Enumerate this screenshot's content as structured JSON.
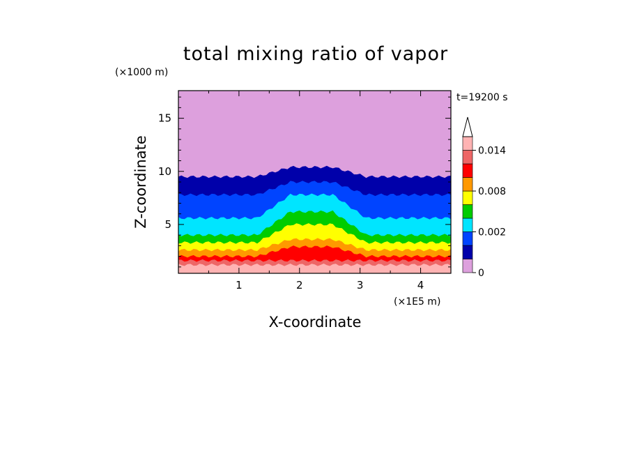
{
  "chart_data": {
    "type": "heatmap",
    "title": "total mixing ratio of vapor",
    "xlabel": "X-coordinate",
    "ylabel": "Z-coordinate",
    "x_unit": "(×1E5 m)",
    "y_unit": "(×1000 m)",
    "time_label": "t=19200 s",
    "xlim": [
      0,
      4.5
    ],
    "ylim": [
      0.4,
      17.6
    ],
    "x_ticks": [
      "1",
      "2",
      "3",
      "4"
    ],
    "x_tick_values": [
      1,
      2,
      3,
      4
    ],
    "y_ticks": [
      "5",
      "10",
      "15"
    ],
    "y_tick_values": [
      5,
      10,
      15
    ],
    "colorbar": {
      "levels": [
        0,
        0.001,
        0.002,
        0.004,
        0.006,
        0.008,
        0.01,
        0.012,
        0.014,
        0.016
      ],
      "tick_labels": [
        "0",
        "0.002",
        "0.008",
        "0.014"
      ],
      "tick_values": [
        0,
        0.002,
        0.008,
        0.014
      ],
      "colors": [
        "#dda0dd",
        "#0000aa",
        "#0044ff",
        "#00e5ff",
        "#00cc00",
        "#ffff00",
        "#ff9900",
        "#ff0000",
        "#ee6666",
        "#ffb3b3"
      ],
      "extend": "max"
    },
    "bands": [
      {
        "level": 0.001,
        "z_far": 9.5,
        "z_near": 9.5,
        "z_top": 10.4
      },
      {
        "level": 0.002,
        "z_far": 7.8,
        "z_near": 7.8,
        "z_top": 9.0
      },
      {
        "level": 0.004,
        "z_far": 5.6,
        "z_near": 5.6,
        "z_top": 7.8
      },
      {
        "level": 0.006,
        "z_far": 4.0,
        "z_near": 4.0,
        "z_top": 6.2
      },
      {
        "level": 0.008,
        "z_far": 3.3,
        "z_near": 3.3,
        "z_top": 5.0
      },
      {
        "level": 0.01,
        "z_far": 2.6,
        "z_near": 2.6,
        "z_top": 3.6
      },
      {
        "level": 0.012,
        "z_far": 2.0,
        "z_near": 2.0,
        "z_top": 2.9
      },
      {
        "level": 0.014,
        "z_far": 1.6,
        "z_near": 1.6,
        "z_top": 1.6
      },
      {
        "level": 0.016,
        "z_far": 1.2,
        "z_near": 1.2,
        "z_top": 1.2
      }
    ]
  }
}
